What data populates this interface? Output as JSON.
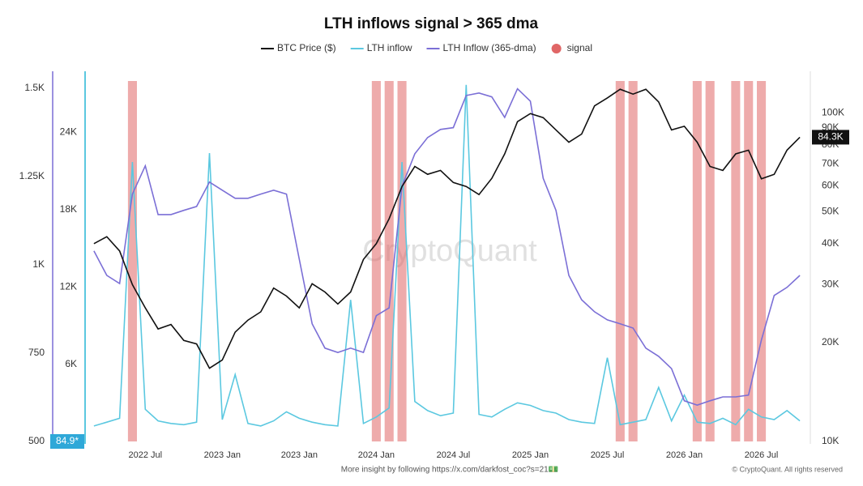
{
  "chart_data": {
    "type": "line",
    "title": "LTH inflows signal > 365 dma",
    "watermark": "CryptoQuant",
    "footer": "More insight by following https://x.com/darkfost_coc?s=21💵",
    "copyright": "© CryptoQuant. All rights reserved",
    "categories": [
      null,
      null,
      null,
      null,
      "2022 Jul",
      null,
      null,
      null,
      null,
      null,
      "2023 Jan",
      null,
      null,
      null,
      null,
      null,
      "2023 Jan",
      null,
      null,
      null,
      null,
      null,
      "2024 Jan",
      null,
      null,
      null,
      null,
      null,
      "2024 Jul",
      null,
      null,
      null,
      null,
      null,
      "2025 Jan",
      null,
      null,
      null,
      null,
      null,
      "2025 Jul",
      null,
      null,
      null,
      null,
      null,
      "2026 Jan",
      null,
      null,
      null,
      null,
      null,
      "2026 Jul",
      null,
      null,
      null
    ],
    "series": [
      {
        "name": "BTC Price ($)",
        "color": "#111111",
        "axis": "y2",
        "values": [
          40000,
          42000,
          38000,
          30000,
          25500,
          22000,
          22700,
          20300,
          19800,
          16700,
          17700,
          21500,
          23400,
          24800,
          29300,
          27700,
          25500,
          30200,
          28500,
          26200,
          28500,
          35800,
          40000,
          47600,
          59700,
          68700,
          65000,
          66800,
          61400,
          59700,
          56400,
          63200,
          75000,
          94000,
          99500,
          96700,
          88700,
          81400,
          86200,
          105000,
          111000,
          118000,
          114000,
          118000,
          108000,
          88700,
          91000,
          81400,
          68700,
          66800,
          75000,
          77000,
          63000,
          65000,
          77000,
          84300
        ]
      },
      {
        "name": "LTH inflow",
        "color": "#5bc8e0",
        "axis": "y",
        "values": [
          1200,
          1500,
          1800,
          21700,
          2500,
          1600,
          1400,
          1300,
          1500,
          22400,
          1700,
          5200,
          1400,
          1200,
          1600,
          2300,
          1800,
          1500,
          1300,
          1200,
          11000,
          1400,
          1900,
          2600,
          21700,
          3100,
          2400,
          2000,
          2200,
          27700,
          2100,
          1900,
          2500,
          3000,
          2800,
          2400,
          2200,
          1700,
          1500,
          1400,
          6500,
          1300,
          1500,
          1700,
          4200,
          1600,
          3600,
          1500,
          1400,
          1800,
          1300,
          2500,
          1900,
          1700,
          2400,
          1600
        ]
      },
      {
        "name": "LTH Inflow (365-dma)",
        "color": "#7b6fd6",
        "axis": "y3",
        "values": [
          1039,
          970,
          947,
          1200,
          1280,
          1142,
          1142,
          1154,
          1165,
          1234,
          1211,
          1188,
          1188,
          1200,
          1211,
          1200,
          1016,
          833,
          764,
          752,
          764,
          752,
          856,
          878,
          1222,
          1314,
          1360,
          1383,
          1388,
          1479,
          1486,
          1475,
          1417,
          1498,
          1463,
          1245,
          1154,
          970,
          901,
          867,
          844,
          833,
          821,
          764,
          741,
          706,
          615,
          603,
          615,
          626,
          626,
          631,
          787,
          913,
          936,
          970
        ]
      }
    ],
    "signal": {
      "name": "signal",
      "color": "#e06666",
      "values": [
        false,
        false,
        false,
        true,
        false,
        false,
        false,
        false,
        false,
        false,
        false,
        false,
        false,
        false,
        false,
        false,
        false,
        false,
        false,
        false,
        false,
        false,
        true,
        true,
        true,
        false,
        false,
        false,
        false,
        false,
        false,
        false,
        false,
        false,
        false,
        false,
        false,
        false,
        false,
        false,
        false,
        true,
        true,
        false,
        false,
        false,
        false,
        true,
        true,
        false,
        true,
        true,
        true,
        false,
        false,
        false
      ]
    },
    "ylim": [
      0,
      28000
    ],
    "yticks": [
      {
        "value": 6000,
        "label": "6K"
      },
      {
        "value": 12000,
        "label": "12K"
      },
      {
        "value": 18000,
        "label": "18K"
      },
      {
        "value": 24000,
        "label": "24K"
      }
    ],
    "y3lim": [
      500,
      1520
    ],
    "y3ticks": [
      500,
      750,
      {
        "value": 1000,
        "label": "1K"
      },
      {
        "value": 1250,
        "label": "1.25K"
      },
      {
        "value": 1500,
        "label": "1.5K"
      }
    ],
    "y2lim": [
      10000,
      125000
    ],
    "y2log": true,
    "y2ticks": [
      {
        "value": 10000,
        "label": "10K"
      },
      {
        "value": 20000,
        "label": "20K"
      },
      {
        "value": 30000,
        "label": "30K"
      },
      {
        "value": 40000,
        "label": "40K"
      },
      {
        "value": 50000,
        "label": "50K"
      },
      {
        "value": 60000,
        "label": "60K"
      },
      {
        "value": 70000,
        "label": "70K"
      },
      {
        "value": 80000,
        "label": "80K"
      },
      {
        "value": 90000,
        "label": "90K"
      },
      {
        "value": 100000,
        "label": "100K"
      }
    ],
    "price_label": {
      "value": 84300,
      "label": "84.3K"
    },
    "inflow_label": "84.9*",
    "legend": "top",
    "grid": false
  }
}
